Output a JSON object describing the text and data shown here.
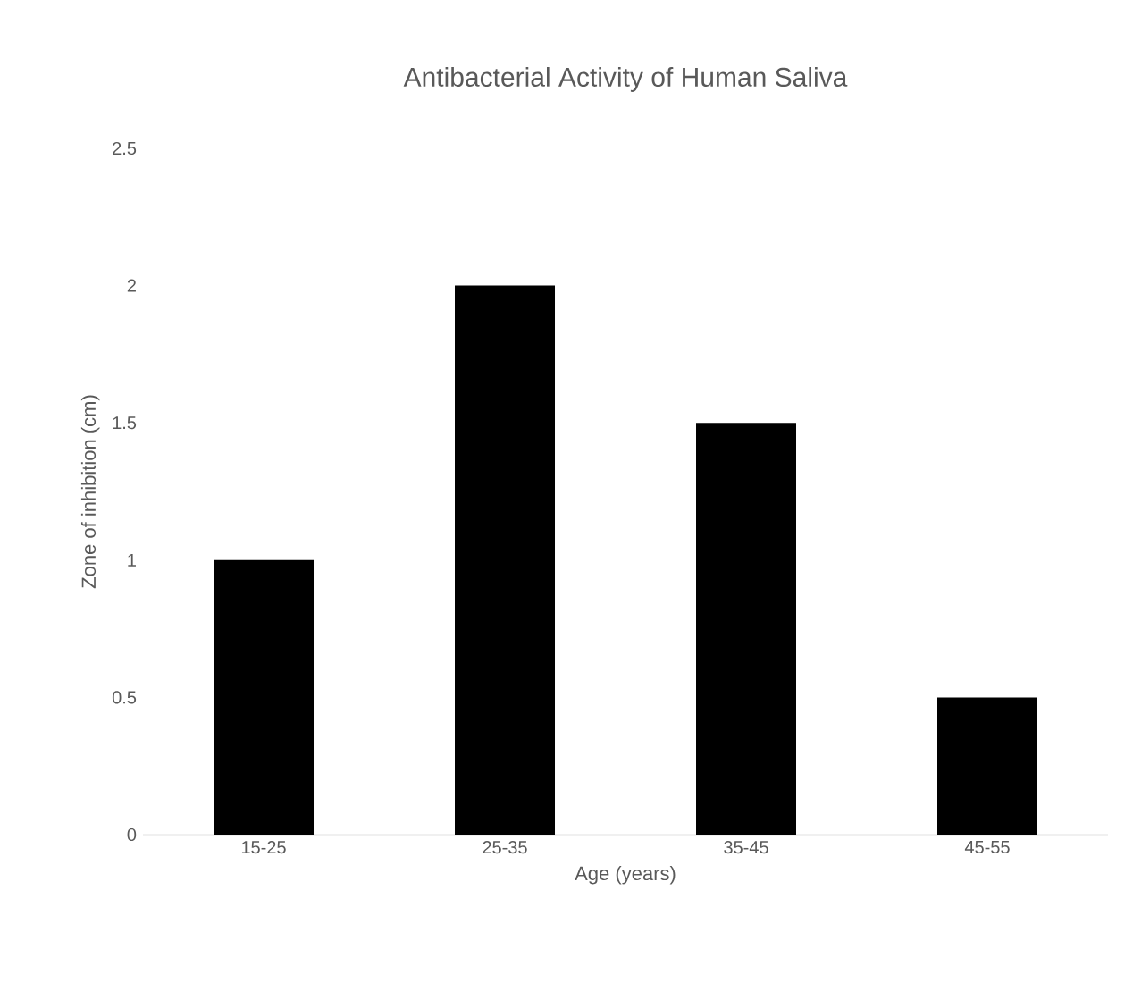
{
  "chart_data": {
    "type": "bar",
    "title": "Antibacterial  Activity of Human Saliva",
    "xlabel": "Age (years)",
    "ylabel": "Zone of inhibition (cm)",
    "categories": [
      "15-25",
      "25-35",
      "35-45",
      "45-55"
    ],
    "values": [
      1,
      2,
      1.5,
      0.5
    ],
    "color": "#000000",
    "ylim": [
      0,
      2.5
    ],
    "yticks": [
      0,
      0.5,
      1,
      1.5,
      2,
      2.5
    ]
  }
}
